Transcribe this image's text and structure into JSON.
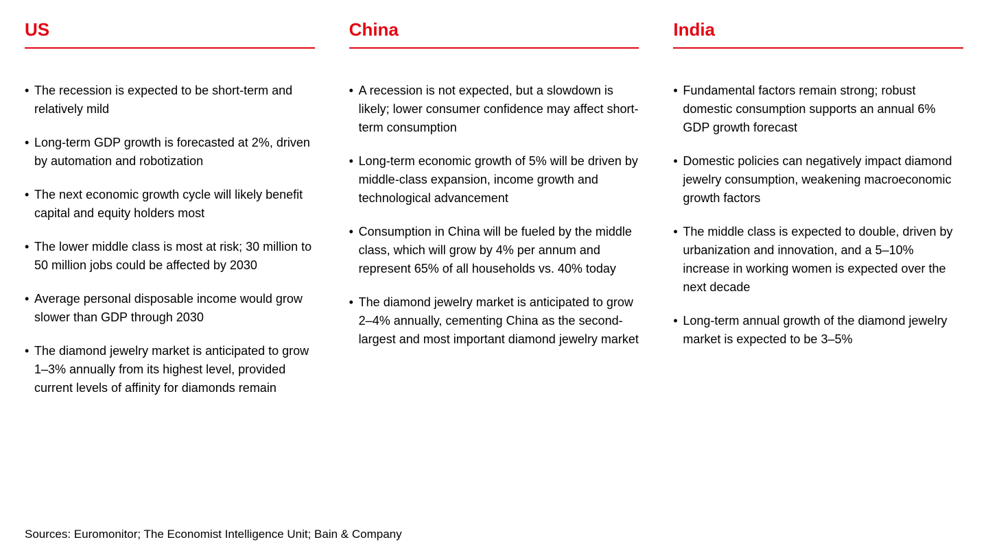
{
  "colors": {
    "accent": "#e30613",
    "rule": "#e30613",
    "text": "#000000",
    "background": "#ffffff"
  },
  "columns": [
    {
      "title": "US",
      "bullets": [
        "The recession is expected to be short-term and relatively mild",
        "Long-term GDP growth is forecasted at 2%, driven by automation and robotization",
        "The next economic growth cycle will likely benefit capital and equity holders most",
        "The lower middle class is most at risk; 30 million to 50 million jobs could be affected by 2030",
        "Average personal disposable income would grow slower than GDP through 2030",
        "The diamond jewelry market is anticipated to grow 1–3% annually from its highest level, provided current levels of affinity for diamonds remain"
      ]
    },
    {
      "title": "China",
      "bullets": [
        "A recession is not expected, but a slowdown is likely; lower consumer confidence may affect short-term consumption",
        "Long-term economic growth of 5% will be driven by middle-class expansion, income growth and technological advancement",
        "Consumption in China will be fueled by the middle class, which will grow by 4% per annum and represent 65% of all households vs. 40% today",
        "The diamond jewelry market is anticipated to grow 2–4% annually, cementing China as the second-largest and most important diamond jewelry market"
      ]
    },
    {
      "title": "India",
      "bullets": [
        "Fundamental factors remain strong; robust domestic consumption supports an annual 6% GDP growth forecast",
        "Domestic policies can negatively impact diamond jewelry consumption, weakening macroeconomic growth factors",
        "The middle class is expected to double, driven by urbanization and innovation, and a 5–10% increase in working women is expected over the next decade",
        "Long-term annual growth of the diamond jewelry market is expected to be 3–5%"
      ]
    }
  ],
  "sources": "Sources: Euromonitor; The Economist Intelligence Unit; Bain & Company"
}
